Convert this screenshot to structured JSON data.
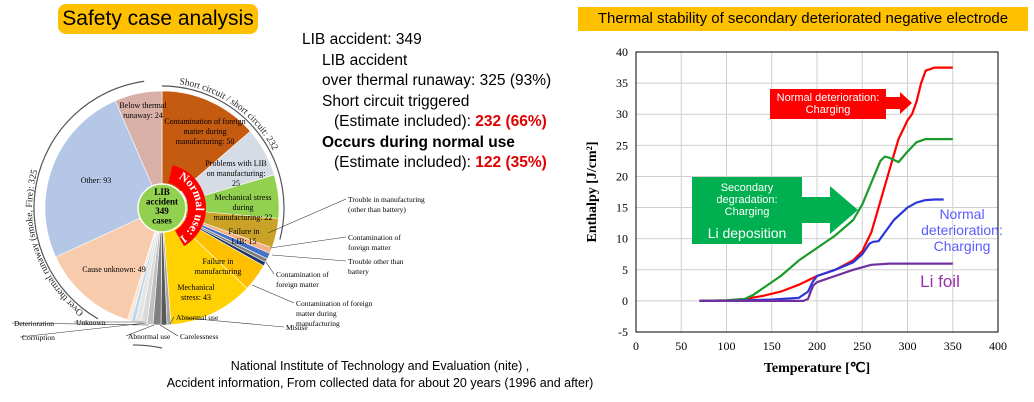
{
  "left_panel": {
    "title": "Safety case analysis",
    "stats": [
      {
        "text": "LIB accident: 349",
        "indent": 0,
        "bold": false
      },
      {
        "text": "LIB accident",
        "indent": 1,
        "bold": false
      },
      {
        "text": "over thermal runaway: 325 (93%)",
        "indent": 1,
        "bold": false
      },
      {
        "text": "Short circuit triggered",
        "indent": 1,
        "bold": false
      },
      {
        "text": "(Estimate included): ",
        "highlight": "232 (66%)",
        "indent": 2,
        "bold": false
      },
      {
        "text": "Occurs during normal use",
        "indent": 1,
        "bold": true
      },
      {
        "text": "(Estimate included): ",
        "highlight": "122 (35%)",
        "indent": 2,
        "bold": false
      }
    ],
    "source_line1": "National Institute of Technology and Evaluation (nite) ,",
    "source_line2": "Accident information, From collected data for about 20 years (1996 and after)"
  },
  "pie_chart": {
    "type": "pie",
    "center_label": [
      "LIB",
      "accident",
      "349",
      "cases"
    ],
    "outer_ring_labels": {
      "thermal_runaway": "Over thermal runaway (smoke, Fire): 325",
      "short_circuit": "Short circuit / short circuit: 232",
      "normal_use": "Normal use: 122"
    },
    "slices": [
      {
        "label": "Contamination of foreign matter during manufacturing: 50",
        "value": 50,
        "color": "#c55a11"
      },
      {
        "label": "Problems with LIB on manufacturing: 25",
        "value": 25,
        "color": "#d6dce5"
      },
      {
        "label": "Mechanical stress during manufacturing: 22",
        "value": 22,
        "color": "#92d050"
      },
      {
        "label": "Failure in LIB: 15",
        "value": 15,
        "color": "#c9a227"
      },
      {
        "label": "Trouble in manufacturing (other than battery)",
        "value": 3,
        "color": "#f4b183"
      },
      {
        "label": "Contamination of foreign matter",
        "value": 3,
        "color": "#4472c4"
      },
      {
        "label": "Trouble other than battery",
        "value": 2,
        "color": "#7f7f7f"
      },
      {
        "label": "Contamination of foreign matter",
        "value": 2,
        "color": "#203864"
      },
      {
        "label": "Failure in manufacturing",
        "value": 14,
        "color": "#ffc000"
      },
      {
        "label": "Mechanical stress: 43",
        "value": 43,
        "color": "#ffd100"
      },
      {
        "label": "Contamination of foreign matter during manufacturing",
        "value": 2,
        "color": "#a6a6a6"
      },
      {
        "label": "Misuse",
        "value": 3,
        "color": "#595959"
      },
      {
        "label": "Abnormal use",
        "value": 4,
        "color": "#808080"
      },
      {
        "label": "Carelessness",
        "value": 3,
        "color": "#bfbfbf"
      },
      {
        "label": "Abnormal use",
        "value": 3,
        "color": "#d9d9d9"
      },
      {
        "label": "Deterioration",
        "value": 3,
        "color": "#e7e6e6"
      },
      {
        "label": "Corruption",
        "value": 2,
        "color": "#bdd7ee"
      },
      {
        "label": "Unknown",
        "value": 2,
        "color": "#fbe5d6"
      },
      {
        "label": "Cause unknown: 49",
        "value": 49,
        "color": "#f8cbad"
      },
      {
        "label": "Other: 93",
        "value": 93,
        "color": "#b4c7e7"
      },
      {
        "label": "Below thermal runaway: 24",
        "value": 24,
        "color": "#d9b0a8"
      }
    ],
    "callouts": [
      "Trouble in manufacturing (other than battery)",
      "Contamination of foreign matter",
      "Trouble other than battery",
      "Contamination of foreign matter",
      "Contamination of foreign matter during manufacturing",
      "Misuse",
      "Abnormal use",
      "Carelessness",
      "Abnormal use",
      "Deterioration",
      "Corruption",
      "Unknown"
    ]
  },
  "chart_data": {
    "type": "line",
    "title": "Thermal stability of secondary deteriorated negative electrode",
    "xlabel": "Temperature [℃]",
    "ylabel": "Enthalpy [J/cm²]",
    "xlim": [
      0,
      400
    ],
    "ylim": [
      -5,
      40
    ],
    "xticks": [
      0,
      50,
      100,
      150,
      200,
      250,
      300,
      350,
      400
    ],
    "yticks": [
      -5,
      0,
      5,
      10,
      15,
      20,
      25,
      30,
      35,
      40
    ],
    "grid": true,
    "series": [
      {
        "name": "Normal deterioration: Charging",
        "color": "#ff0000",
        "x": [
          70,
          100,
          120,
          140,
          160,
          180,
          200,
          220,
          240,
          250,
          260,
          270,
          280,
          290,
          300,
          305,
          310,
          315,
          320,
          330,
          340,
          350
        ],
        "y": [
          0,
          0.1,
          0.3,
          0.8,
          1.5,
          2.6,
          4,
          5,
          6.5,
          8,
          11,
          16,
          21,
          26,
          29,
          30,
          32,
          35,
          37,
          37.5,
          37.5,
          37.5
        ]
      },
      {
        "name": "Secondary degradation: Charging",
        "color": "#1a9a2a",
        "x": [
          70,
          100,
          120,
          130,
          140,
          160,
          180,
          200,
          220,
          240,
          250,
          260,
          270,
          275,
          280,
          290,
          300,
          310,
          320,
          330,
          350
        ],
        "y": [
          0,
          0.1,
          0.3,
          1.0,
          2.0,
          4.0,
          6.5,
          8.5,
          10.5,
          13,
          15.5,
          19,
          22.5,
          23.2,
          23,
          22.3,
          24,
          25.5,
          26,
          26,
          26
        ]
      },
      {
        "name": "Normal deterioration: Charging",
        "color": "#2b36d9",
        "x": [
          70,
          100,
          150,
          180,
          190,
          195,
          200,
          220,
          240,
          250,
          258,
          262,
          268,
          275,
          285,
          300,
          310,
          320,
          330,
          340
        ],
        "y": [
          0,
          0,
          0.2,
          0.5,
          1.5,
          3,
          4,
          5,
          6.2,
          7.5,
          9.2,
          9.5,
          9.6,
          11,
          13,
          15,
          15.8,
          16.2,
          16.3,
          16.3
        ]
      },
      {
        "name": "Li foil",
        "color": "#7030a0",
        "x": [
          70,
          100,
          150,
          175,
          185,
          190,
          193,
          196,
          200,
          220,
          240,
          260,
          280,
          300,
          330,
          350
        ],
        "y": [
          0,
          0,
          0,
          0,
          0,
          0.3,
          1.5,
          2.5,
          3,
          4,
          5,
          5.8,
          6,
          6,
          6,
          6
        ]
      }
    ],
    "annotations": [
      {
        "text": [
          "Normal deterioration:",
          "Charging"
        ],
        "box_color": "#ff0000",
        "text_color": "#ffffff",
        "at": [
          220,
          32
        ]
      },
      {
        "text": [
          "Secondary",
          "degradation:",
          "Charging"
        ],
        "sub": "Li deposition",
        "box_color": "#00b050",
        "text_color": "#ffffff",
        "at": [
          120,
          16.5
        ]
      },
      {
        "text": [
          "Normal",
          "deterioration:",
          "Charging"
        ],
        "text_color": "#5b5bff",
        "at": [
          335,
          11
        ]
      },
      {
        "text": [
          "Li foil"
        ],
        "text_color": "#9b2fae",
        "at": [
          318,
          3
        ]
      }
    ]
  }
}
